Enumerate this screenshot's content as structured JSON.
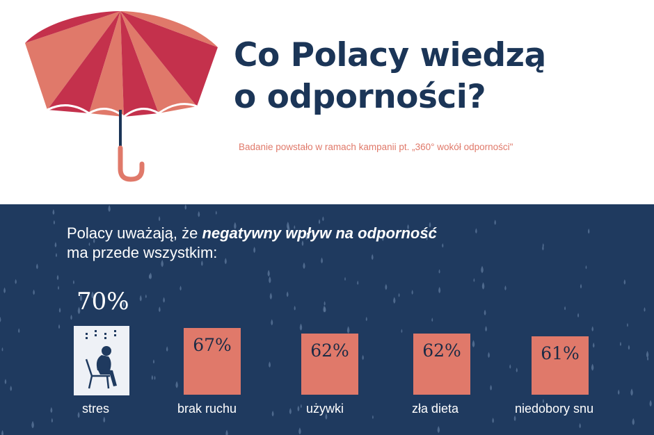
{
  "header": {
    "title_line1": "Co Polacy wiedzą",
    "title_line2": "o odporności?",
    "subtitle": "Badanie powstało w ramach kampanii pt. „360° wokół odporności\""
  },
  "intro": {
    "prefix": "Polacy uważają, że ",
    "emphasis": "negatywny wpływ na odporność",
    "line2": "ma przede wszystkim:"
  },
  "stats": [
    {
      "value": "70%",
      "label": "stres"
    },
    {
      "value": "67%",
      "label": "brak ruchu"
    },
    {
      "value": "62%",
      "label": "używki"
    },
    {
      "value": "62%",
      "label": "zła dieta"
    },
    {
      "value": "61%",
      "label": "niedobory snu"
    }
  ],
  "colors": {
    "navy": "#1f3a5f",
    "title": "#1b3557",
    "coral": "#e0796a",
    "umbrella_red": "#c4314c"
  },
  "icons": [
    "umbrella-icon",
    "stressed-person-icon"
  ]
}
